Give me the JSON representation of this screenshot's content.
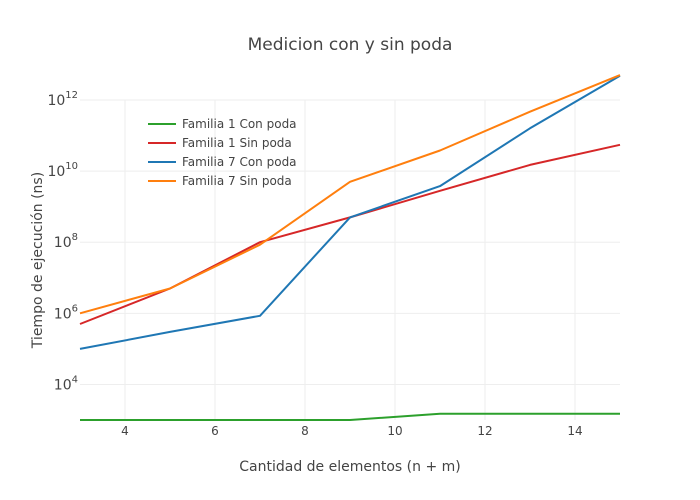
{
  "chart_data": {
    "type": "line",
    "title": "Medicion con y sin poda",
    "xlabel": "Cantidad de elementos (n + m)",
    "ylabel": "Tiempo de ejecución (ns)",
    "yscale": "log",
    "xlim": [
      3,
      15
    ],
    "ylim_log10": [
      3,
      12
    ],
    "xticks": [
      4,
      6,
      8,
      10,
      12,
      14
    ],
    "yticks": [
      {
        "base": "10",
        "exp": "4",
        "log": 4
      },
      {
        "base": "10",
        "exp": "6",
        "log": 6
      },
      {
        "base": "10",
        "exp": "8",
        "log": 8
      },
      {
        "base": "10",
        "exp": "10",
        "log": 10
      },
      {
        "base": "10",
        "exp": "12",
        "log": 12
      }
    ],
    "grid": true,
    "legend_position": "top-left",
    "x": [
      3,
      5,
      7,
      9,
      11,
      13,
      15
    ],
    "series": [
      {
        "name": "Familia 1 Con poda",
        "color": "#2ca02c",
        "values": [
          1000,
          1000,
          1000,
          1000,
          1500,
          1500,
          1500
        ]
      },
      {
        "name": "Familia 1 Sin poda",
        "color": "#d62728",
        "values": [
          500000,
          5000000,
          100000000,
          500000000,
          2800000000,
          15000000000,
          55000000000
        ]
      },
      {
        "name": "Familia 7 Con poda",
        "color": "#1f77b4",
        "values": [
          100000,
          300000,
          850000,
          500000000,
          3800000000,
          160000000000,
          4800000000000
        ]
      },
      {
        "name": "Familia 7 Sin poda",
        "color": "#ff7f0e",
        "values": [
          1000000,
          5000000,
          85000000,
          5000000000,
          38000000000,
          470000000000,
          5000000000000
        ]
      }
    ]
  }
}
